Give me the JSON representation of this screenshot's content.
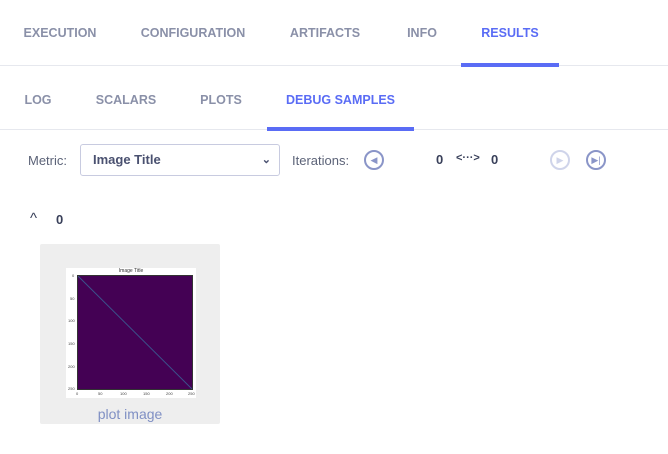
{
  "tabs": [
    {
      "label": "EXECUTION"
    },
    {
      "label": "CONFIGURATION"
    },
    {
      "label": "ARTIFACTS"
    },
    {
      "label": "INFO"
    },
    {
      "label": "RESULTS",
      "active": true
    }
  ],
  "subtabs": [
    {
      "label": "LOG"
    },
    {
      "label": "SCALARS"
    },
    {
      "label": "PLOTS"
    },
    {
      "label": "DEBUG SAMPLES",
      "active": true
    }
  ],
  "toolbar": {
    "metric_label": "Metric:",
    "metric_value": "Image Title",
    "iterations_label": "Iterations:",
    "iter_from": "0",
    "iter_sep": "<···>",
    "iter_to": "0"
  },
  "group": {
    "chevron": "^",
    "title": "0"
  },
  "sample": {
    "caption": "plot image",
    "thumb": {
      "title": "Image Title",
      "yticks": [
        "0",
        "50",
        "100",
        "150",
        "200",
        "250"
      ],
      "xticks": [
        "0",
        "50",
        "100",
        "150",
        "200",
        "250"
      ]
    }
  },
  "colors": {
    "accent": "#5a6cf5",
    "plot_bg": "#440154",
    "card": "#eeeeee"
  }
}
